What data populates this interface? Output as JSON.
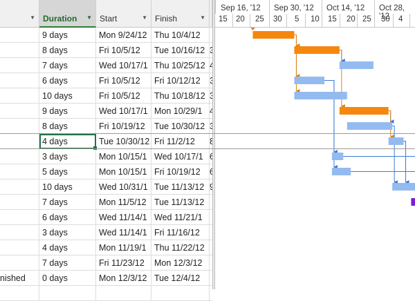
{
  "columns": [
    {
      "label": "",
      "has_dropdown": true
    },
    {
      "label": "Duration",
      "has_dropdown": true,
      "active": true
    },
    {
      "label": "Start",
      "has_dropdown": true
    },
    {
      "label": "Finish",
      "has_dropdown": true
    }
  ],
  "timeline": {
    "weeks": [
      "Sep 16, '12",
      "Sep 30, '12",
      "Oct 14, '12",
      "Oct 28, '12"
    ],
    "days": [
      "15",
      "20",
      "25",
      "30",
      "5",
      "10",
      "15",
      "20",
      "25",
      "30",
      "4"
    ]
  },
  "rows": [
    {
      "name": "",
      "duration": "9 days",
      "start": "Mon 9/24/12",
      "finish": "Thu 10/4/12",
      "extra": ""
    },
    {
      "name": "",
      "duration": "8 days",
      "start": "Fri 10/5/12",
      "finish": "Tue 10/16/12",
      "extra": "3"
    },
    {
      "name": "",
      "duration": "7 days",
      "start": "Wed 10/17/1",
      "finish": "Thu 10/25/12",
      "extra": "4"
    },
    {
      "name": "",
      "duration": "6 days",
      "start": "Fri 10/5/12",
      "finish": "Fri 10/12/12",
      "extra": "3"
    },
    {
      "name": "",
      "duration": "10 days",
      "start": "Fri 10/5/12",
      "finish": "Thu 10/18/12",
      "extra": "3"
    },
    {
      "name": "",
      "duration": "9 days",
      "start": "Wed 10/17/1",
      "finish": "Mon 10/29/1",
      "extra": "4"
    },
    {
      "name": "",
      "duration": "8 days",
      "start": "Fri 10/19/12",
      "finish": "Tue 10/30/12",
      "extra": "3"
    },
    {
      "name": "",
      "duration": "4 days",
      "start": "Tue 10/30/12",
      "finish": "Fri 11/2/12",
      "extra": "8"
    },
    {
      "name": "",
      "duration": "3 days",
      "start": "Mon 10/15/1",
      "finish": "Wed 10/17/1",
      "extra": "6"
    },
    {
      "name": "",
      "duration": "5 days",
      "start": "Mon 10/15/1",
      "finish": "Fri 10/19/12",
      "extra": "6"
    },
    {
      "name": "",
      "duration": "10 days",
      "start": "Wed 10/31/1",
      "finish": "Tue 11/13/12",
      "extra": "9"
    },
    {
      "name": "",
      "duration": "7 days",
      "start": "Mon 11/5/12",
      "finish": "Tue 11/13/12",
      "extra": ""
    },
    {
      "name": "",
      "duration": "6 days",
      "start": "Wed 11/14/1",
      "finish": "Wed 11/21/1",
      "extra": ""
    },
    {
      "name": "",
      "duration": "3 days",
      "start": "Wed 11/14/1",
      "finish": "Fri 11/16/12",
      "extra": ""
    },
    {
      "name": "",
      "duration": "4 days",
      "start": "Mon 11/19/1",
      "finish": "Thu 11/22/12",
      "extra": ""
    },
    {
      "name": "",
      "duration": "7 days",
      "start": "Fri 11/23/12",
      "finish": "Mon 12/3/12",
      "extra": ""
    },
    {
      "name": "nished",
      "duration": "0 days",
      "start": "Mon 12/3/12",
      "finish": "Tue 12/4/12",
      "extra": ""
    },
    {
      "name": "",
      "duration": "",
      "start": "",
      "finish": "",
      "extra": ""
    }
  ],
  "selected_row": 7,
  "colors": {
    "critical": "#f5870f",
    "normal": "#94bbef",
    "summary": "#7a1fd1",
    "link_critical": "#d9821a",
    "link_normal": "#3a7bd5"
  },
  "bars": [
    {
      "row": 0,
      "start": "2012-09-24",
      "end": "2012-10-04",
      "kind": "critical"
    },
    {
      "row": 1,
      "start": "2012-10-05",
      "end": "2012-10-16",
      "kind": "critical"
    },
    {
      "row": 2,
      "start": "2012-10-17",
      "end": "2012-10-25",
      "kind": "normal"
    },
    {
      "row": 3,
      "start": "2012-10-05",
      "end": "2012-10-12",
      "kind": "normal"
    },
    {
      "row": 4,
      "start": "2012-10-05",
      "end": "2012-10-18",
      "kind": "normal"
    },
    {
      "row": 5,
      "start": "2012-10-17",
      "end": "2012-10-29",
      "kind": "critical"
    },
    {
      "row": 6,
      "start": "2012-10-19",
      "end": "2012-10-30",
      "kind": "normal"
    },
    {
      "row": 7,
      "start": "2012-10-30",
      "end": "2012-11-02",
      "kind": "normal"
    },
    {
      "row": 8,
      "start": "2012-10-15",
      "end": "2012-10-17",
      "kind": "normal"
    },
    {
      "row": 9,
      "start": "2012-10-15",
      "end": "2012-10-19",
      "kind": "normal"
    },
    {
      "row": 10,
      "start": "2012-10-31",
      "end": "2012-11-13",
      "kind": "normal"
    },
    {
      "row": 11,
      "start": "2012-11-05",
      "end": "2012-11-13",
      "kind": "summary"
    }
  ]
}
